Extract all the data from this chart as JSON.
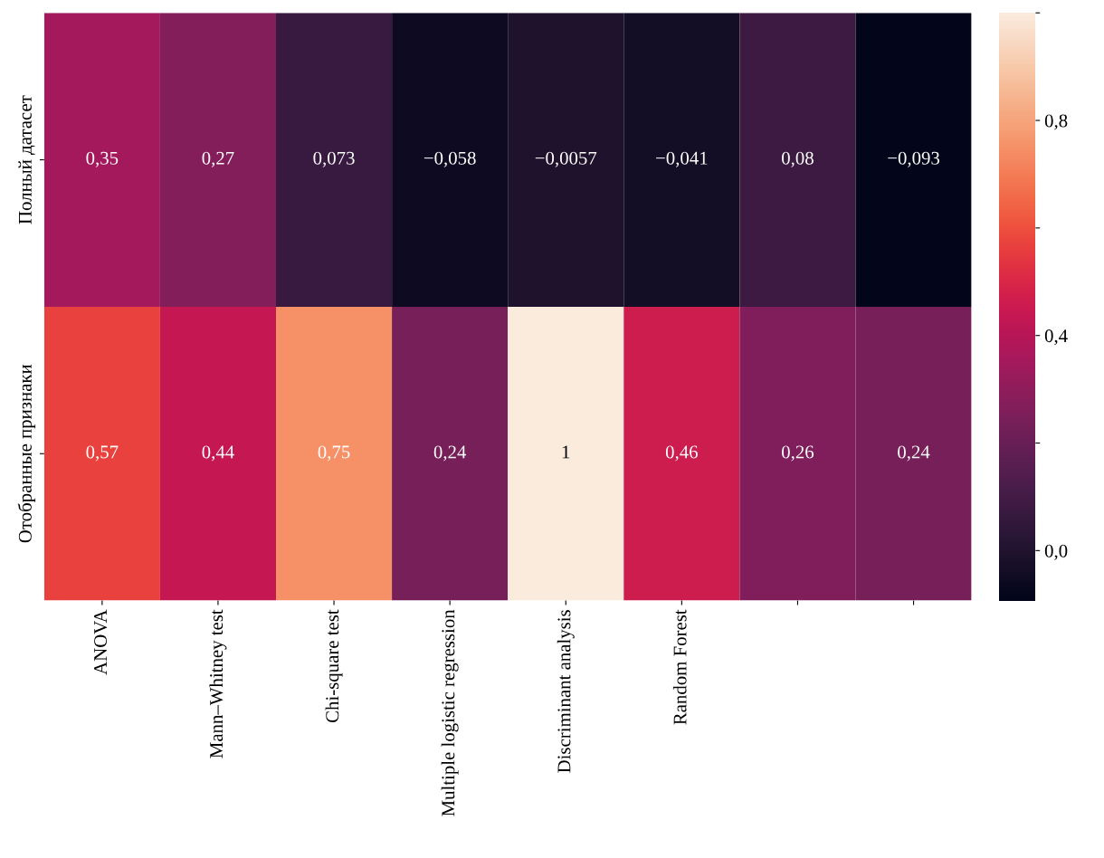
{
  "chart_data": {
    "type": "heatmap",
    "categories": [
      "ANOVA",
      "Mann–Whitney test",
      "Chi-square test",
      "Multiple logistic regression",
      "Discriminant analysis",
      "Random Forest",
      null,
      null
    ],
    "y_categories": [
      "Полный датасет",
      "Отобранные признаки"
    ],
    "cells": [
      [
        0.35,
        0.27,
        0.073,
        -0.058,
        -0.0057,
        -0.041,
        0.08,
        -0.093
      ],
      [
        0.57,
        0.44,
        0.75,
        0.24,
        1,
        0.46,
        0.26,
        0.24
      ]
    ],
    "cell_labels": [
      [
        "0,35",
        "0,27",
        "0,073",
        "−0,058",
        "−0,0057",
        "−0,041",
        "0,08",
        "−0,093"
      ],
      [
        "0,57",
        "0,44",
        "0,75",
        "0,24",
        "1",
        "0,46",
        "0,26",
        "0,24"
      ]
    ],
    "clim": [
      -0.093,
      1
    ],
    "cticks": [
      {
        "value": 0,
        "label": "0,0"
      },
      {
        "value": 0.2,
        "label": null
      },
      {
        "value": 0.4,
        "label": "0,4"
      },
      {
        "value": 0.6,
        "label": null
      },
      {
        "value": 0.8,
        "label": "0,8"
      },
      {
        "value": 1,
        "label": null
      }
    ]
  }
}
